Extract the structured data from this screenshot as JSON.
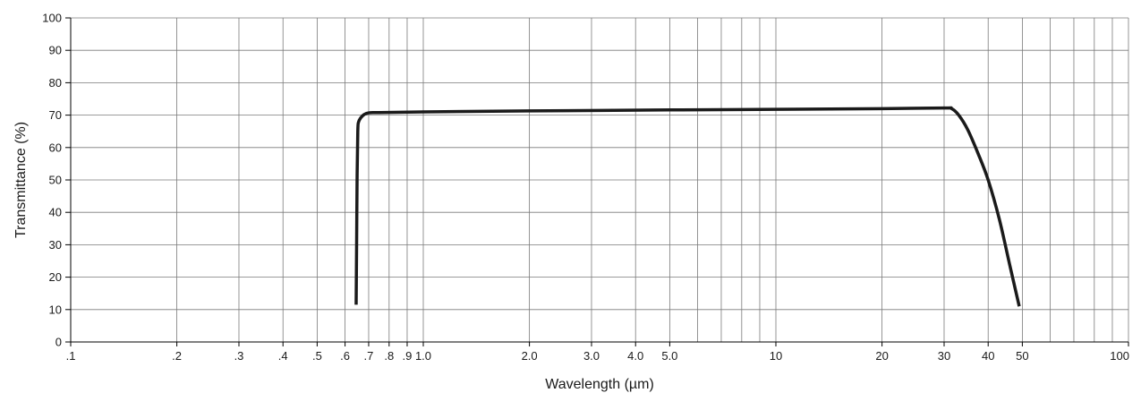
{
  "chart_data": {
    "type": "line",
    "title": "",
    "xlabel": "Wavelength (µm)",
    "ylabel": "Transmittance (%)",
    "xscale": "log",
    "xlim": [
      0.1,
      100
    ],
    "ylim": [
      0,
      100
    ],
    "grid": true,
    "legend": "none",
    "x_ticks": [
      {
        "value": 0.1,
        "label": ".1"
      },
      {
        "value": 0.2,
        "label": ".2"
      },
      {
        "value": 0.3,
        "label": ".3"
      },
      {
        "value": 0.4,
        "label": ".4"
      },
      {
        "value": 0.5,
        "label": ".5"
      },
      {
        "value": 0.6,
        "label": ".6"
      },
      {
        "value": 0.7,
        "label": ".7"
      },
      {
        "value": 0.8,
        "label": ".8"
      },
      {
        "value": 0.9,
        "label": ".9"
      },
      {
        "value": 1.0,
        "label": "1.0"
      },
      {
        "value": 2.0,
        "label": "2.0"
      },
      {
        "value": 3.0,
        "label": "3.0"
      },
      {
        "value": 4.0,
        "label": "4.0"
      },
      {
        "value": 5.0,
        "label": "5.0"
      },
      {
        "value": 10,
        "label": "10"
      },
      {
        "value": 20,
        "label": "20"
      },
      {
        "value": 30,
        "label": "30"
      },
      {
        "value": 40,
        "label": "40"
      },
      {
        "value": 50,
        "label": "50"
      },
      {
        "value": 100,
        "label": "100"
      }
    ],
    "x_gridlines": [
      0.1,
      0.2,
      0.3,
      0.4,
      0.5,
      0.6,
      0.7,
      0.8,
      0.9,
      1,
      2,
      3,
      4,
      5,
      6,
      7,
      8,
      9,
      10,
      20,
      30,
      40,
      50,
      60,
      70,
      80,
      90,
      100
    ],
    "y_ticks": [
      0,
      10,
      20,
      30,
      40,
      50,
      60,
      70,
      80,
      90,
      100
    ],
    "series": [
      {
        "color": "#1a1a1a",
        "points": [
          {
            "x": 0.645,
            "y": 11.5
          },
          {
            "x": 0.647,
            "y": 30
          },
          {
            "x": 0.649,
            "y": 50
          },
          {
            "x": 0.652,
            "y": 65
          },
          {
            "x": 0.655,
            "y": 67.8
          },
          {
            "x": 0.665,
            "y": 69.2
          },
          {
            "x": 0.68,
            "y": 70.2
          },
          {
            "x": 0.7,
            "y": 70.7
          },
          {
            "x": 0.75,
            "y": 70.8
          },
          {
            "x": 1.0,
            "y": 71.0
          },
          {
            "x": 2.0,
            "y": 71.3
          },
          {
            "x": 5.0,
            "y": 71.6
          },
          {
            "x": 10,
            "y": 71.8
          },
          {
            "x": 20,
            "y": 72.0
          },
          {
            "x": 30,
            "y": 72.2
          },
          {
            "x": 31.5,
            "y": 72.0
          },
          {
            "x": 33,
            "y": 70.0
          },
          {
            "x": 35,
            "y": 65.5
          },
          {
            "x": 37.5,
            "y": 58.0
          },
          {
            "x": 40,
            "y": 50.0
          },
          {
            "x": 43,
            "y": 38.0
          },
          {
            "x": 46,
            "y": 24.0
          },
          {
            "x": 49,
            "y": 11.0
          }
        ]
      }
    ]
  },
  "colors": {
    "background": "#ffffff",
    "grid": "#7a7a7a",
    "axis": "#000000",
    "series": "#1a1a1a"
  }
}
